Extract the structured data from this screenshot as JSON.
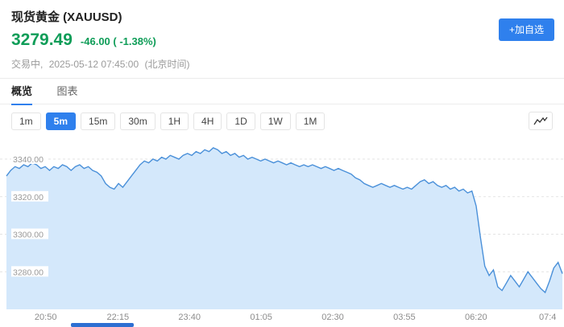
{
  "header": {
    "title": "现货黄金 (XAUUSD)",
    "price": "3279.49",
    "change": "-46.00 ( -1.38%)",
    "status": "交易中,",
    "timestamp": "2025-05-12 07:45:00",
    "timezone": "(北京时间)",
    "add_button_label": "+加自选",
    "price_color": "#0f9d58",
    "accent_color": "#2f80ed"
  },
  "tabs": [
    {
      "label": "概览",
      "active": true
    },
    {
      "label": "图表",
      "active": false
    }
  ],
  "timeframes": {
    "options": [
      "1m",
      "5m",
      "15m",
      "30m",
      "1H",
      "4H",
      "1D",
      "1W",
      "1M"
    ],
    "active": "5m"
  },
  "icons": {
    "line_chart_icon": "zigzag-polyline"
  },
  "chart_data": {
    "type": "area",
    "symbol": "XAUUSD 5m",
    "ylim": [
      3260,
      3352
    ],
    "y_ticks": [
      3340,
      3320,
      3300,
      3280
    ],
    "y_tick_labels": [
      "3340.00",
      "3320.00",
      "3300.00",
      "3280.00"
    ],
    "grid": "dashed-horizontal",
    "line_color": "#4a90d9",
    "fill_color": "#d4e8fb",
    "x_labels": [
      {
        "label": "20:50",
        "pos": 8.1
      },
      {
        "label": "22:15",
        "pos": 20.9
      },
      {
        "label": "23:40",
        "pos": 33.6
      },
      {
        "label": "01:05",
        "pos": 46.3
      },
      {
        "label": "02:30",
        "pos": 59.0
      },
      {
        "label": "03:55",
        "pos": 71.7
      },
      {
        "label": "06:20",
        "pos": 84.4
      },
      {
        "label": "07:4",
        "pos": 97.1
      }
    ],
    "values": [
      3331,
      3334,
      3336,
      3335,
      3337,
      3336,
      3338,
      3337,
      3335,
      3336,
      3334,
      3336,
      3335,
      3337,
      3336,
      3334,
      3336,
      3337,
      3335,
      3336,
      3334,
      3333,
      3331,
      3327,
      3325,
      3324,
      3327,
      3325,
      3328,
      3331,
      3334,
      3337,
      3339,
      3338,
      3340,
      3339,
      3341,
      3340,
      3342,
      3341,
      3340,
      3342,
      3343,
      3342,
      3344,
      3343,
      3345,
      3344,
      3346,
      3345,
      3343,
      3344,
      3342,
      3343,
      3341,
      3342,
      3340,
      3341,
      3340,
      3339,
      3340,
      3339,
      3338,
      3339,
      3338,
      3337,
      3338,
      3337,
      3336,
      3337,
      3336,
      3337,
      3336,
      3335,
      3336,
      3335,
      3334,
      3335,
      3334,
      3333,
      3332,
      3330,
      3329,
      3327,
      3326,
      3325,
      3326,
      3327,
      3326,
      3325,
      3326,
      3325,
      3324,
      3325,
      3324,
      3326,
      3328,
      3329,
      3327,
      3328,
      3326,
      3325,
      3326,
      3324,
      3325,
      3323,
      3324,
      3322,
      3323,
      3315,
      3298,
      3283,
      3278,
      3281,
      3272,
      3270,
      3274,
      3278,
      3275,
      3272,
      3276,
      3280,
      3277,
      3274,
      3271,
      3269,
      3275,
      3282,
      3285,
      3279
    ]
  }
}
